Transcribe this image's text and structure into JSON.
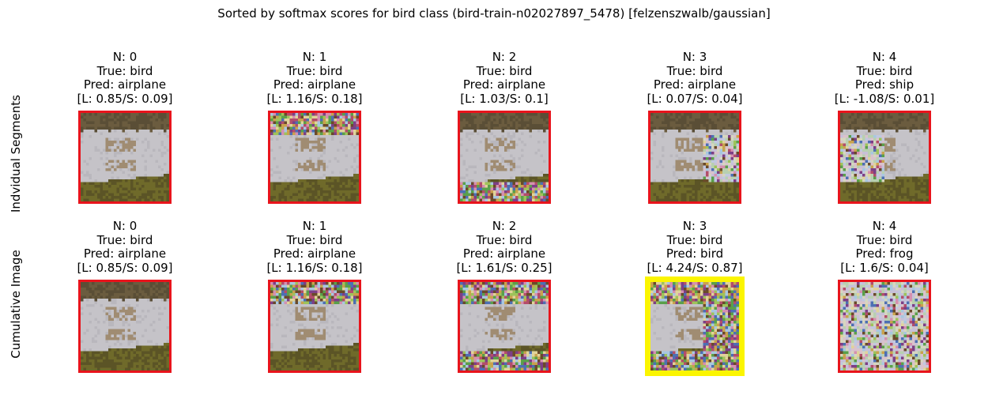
{
  "suptitle": "Sorted by softmax scores for bird class (bird-train-n02027897_5478) [felzenszwalb/gaussian]",
  "row_labels": [
    "Indvidual Segments",
    "Cumulative Image"
  ],
  "rows": [
    {
      "cells": [
        {
          "n": "N: 0",
          "true": "True: bird",
          "pred": "Pred: airplane",
          "scores": "[L: 0.85/S: 0.09]",
          "noise": "none",
          "highlight": false
        },
        {
          "n": "N: 1",
          "true": "True: bird",
          "pred": "Pred: airplane",
          "scores": "[L: 1.16/S: 0.18]",
          "noise": "top",
          "highlight": false
        },
        {
          "n": "N: 2",
          "true": "True: bird",
          "pred": "Pred: airplane",
          "scores": "[L: 1.03/S: 0.1]",
          "noise": "bottom",
          "highlight": false
        },
        {
          "n": "N: 3",
          "true": "True: bird",
          "pred": "Pred: airplane",
          "scores": "[L: 0.07/S: 0.04]",
          "noise": "right",
          "highlight": false
        },
        {
          "n": "N: 4",
          "true": "True: bird",
          "pred": "Pred: ship",
          "scores": "[L: -1.08/S: 0.01]",
          "noise": "left",
          "highlight": false
        }
      ]
    },
    {
      "cells": [
        {
          "n": "N: 0",
          "true": "True: bird",
          "pred": "Pred: airplane",
          "scores": "[L: 0.85/S: 0.09]",
          "noise": "none",
          "highlight": false
        },
        {
          "n": "N: 1",
          "true": "True: bird",
          "pred": "Pred: airplane",
          "scores": "[L: 1.16/S: 0.18]",
          "noise": "top",
          "highlight": false
        },
        {
          "n": "N: 2",
          "true": "True: bird",
          "pred": "Pred: airplane",
          "scores": "[L: 1.61/S: 0.25]",
          "noise": "top-bottom",
          "highlight": false
        },
        {
          "n": "N: 3",
          "true": "True: bird",
          "pred": "Pred: bird",
          "scores": "[L: 4.24/S: 0.87]",
          "noise": "top-bottom-right",
          "highlight": true
        },
        {
          "n": "N: 4",
          "true": "True: bird",
          "pred": "Pred: frog",
          "scores": "[L: 1.6/S: 0.04]",
          "noise": "all",
          "highlight": false
        }
      ]
    }
  ],
  "colors": {
    "frame": "#e8141c",
    "highlight_frame": "#fbf500",
    "water": "#c5c3c8",
    "bank_top": "#6b5c3f",
    "bank_bottom": "#6f6a2a",
    "bird": "#a08c72"
  }
}
